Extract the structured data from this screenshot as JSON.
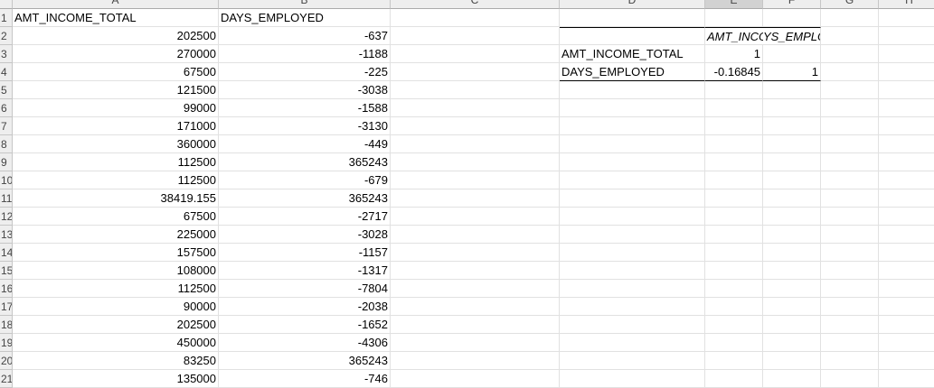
{
  "columns": [
    "A",
    "B",
    "C",
    "D",
    "E",
    "F",
    "G",
    "H"
  ],
  "rows": [
    {
      "n": "1",
      "a": "AMT_INCOME_TOTAL",
      "b": "DAYS_EMPLOYED"
    },
    {
      "n": "2",
      "a": "202500",
      "b": "-637"
    },
    {
      "n": "3",
      "a": "270000",
      "b": "-1188"
    },
    {
      "n": "4",
      "a": "67500",
      "b": "-225"
    },
    {
      "n": "5",
      "a": "121500",
      "b": "-3038"
    },
    {
      "n": "6",
      "a": "99000",
      "b": "-1588"
    },
    {
      "n": "7",
      "a": "171000",
      "b": "-3130"
    },
    {
      "n": "8",
      "a": "360000",
      "b": "-449"
    },
    {
      "n": "9",
      "a": "112500",
      "b": "365243"
    },
    {
      "n": "10",
      "a": "112500",
      "b": "-679"
    },
    {
      "n": "11",
      "a": "38419.155",
      "b": "365243"
    },
    {
      "n": "12",
      "a": "67500",
      "b": "-2717"
    },
    {
      "n": "13",
      "a": "225000",
      "b": "-3028"
    },
    {
      "n": "14",
      "a": "157500",
      "b": "-1157"
    },
    {
      "n": "15",
      "a": "108000",
      "b": "-1317"
    },
    {
      "n": "16",
      "a": "112500",
      "b": "-7804"
    },
    {
      "n": "17",
      "a": "90000",
      "b": "-2038"
    },
    {
      "n": "18",
      "a": "202500",
      "b": "-1652"
    },
    {
      "n": "19",
      "a": "450000",
      "b": "-4306"
    },
    {
      "n": "20",
      "a": "83250",
      "b": "365243"
    },
    {
      "n": "21",
      "a": "135000",
      "b": "-746"
    }
  ],
  "corr_table": {
    "header_e": "AMT_INCOME_",
    "header_f": "YS_EMPLOYED",
    "row1_label": "AMT_INCOME_TOTAL",
    "row1_e": "1",
    "row1_f": "",
    "row2_label": "DAYS_EMPLOYED",
    "row2_e": "-0.16845",
    "row2_f": "1"
  },
  "colors": {
    "header_bg": "#eeeeee",
    "selected_col": "#d2d2d2",
    "gridline": "#e1e1e1"
  }
}
